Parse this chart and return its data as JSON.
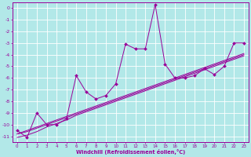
{
  "xlabel": "Windchill (Refroidissement éolien,°C)",
  "bg_color": "#b2e8e8",
  "grid_color": "#ffffff",
  "line_color": "#990099",
  "x_data": [
    0,
    1,
    2,
    3,
    4,
    5,
    6,
    7,
    8,
    9,
    10,
    11,
    12,
    13,
    14,
    15,
    16,
    17,
    18,
    19,
    20,
    21,
    22,
    23
  ],
  "y_scatter": [
    -10.5,
    -11.1,
    -9.0,
    -10.0,
    -10.0,
    -9.5,
    -5.8,
    -7.2,
    -7.8,
    -7.5,
    -6.5,
    -3.1,
    -3.5,
    -3.5,
    0.3,
    -4.8,
    -6.0,
    -6.0,
    -5.8,
    -5.2,
    -5.7,
    -5.0,
    -3.0,
    -3.0
  ],
  "y_line1": [
    -10.8,
    -10.5,
    -10.2,
    -9.9,
    -9.6,
    -9.3,
    -9.0,
    -8.7,
    -8.4,
    -8.1,
    -7.8,
    -7.5,
    -7.2,
    -6.9,
    -6.6,
    -6.3,
    -6.0,
    -5.7,
    -5.4,
    -5.1,
    -4.8,
    -4.5,
    -4.2,
    -3.9
  ],
  "y_line2": [
    -10.8,
    -10.6,
    -10.3,
    -10.0,
    -9.7,
    -9.4,
    -9.1,
    -8.8,
    -8.5,
    -8.2,
    -7.9,
    -7.6,
    -7.3,
    -7.0,
    -6.7,
    -6.4,
    -6.1,
    -5.8,
    -5.5,
    -5.2,
    -4.9,
    -4.6,
    -4.3,
    -4.0
  ],
  "y_line3": [
    -11.1,
    -10.9,
    -10.6,
    -10.2,
    -9.9,
    -9.6,
    -9.2,
    -8.9,
    -8.6,
    -8.3,
    -8.0,
    -7.7,
    -7.4,
    -7.1,
    -6.8,
    -6.5,
    -6.2,
    -5.9,
    -5.6,
    -5.3,
    -5.0,
    -4.7,
    -4.4,
    -4.1
  ],
  "xlim": [
    -0.5,
    23.5
  ],
  "ylim": [
    -11.5,
    0.5
  ],
  "yticks": [
    0,
    -1,
    -2,
    -3,
    -4,
    -5,
    -6,
    -7,
    -8,
    -9,
    -10,
    -11
  ],
  "xticks": [
    0,
    1,
    2,
    3,
    4,
    5,
    6,
    7,
    8,
    9,
    10,
    11,
    12,
    13,
    14,
    15,
    16,
    17,
    18,
    19,
    20,
    21,
    22,
    23
  ]
}
